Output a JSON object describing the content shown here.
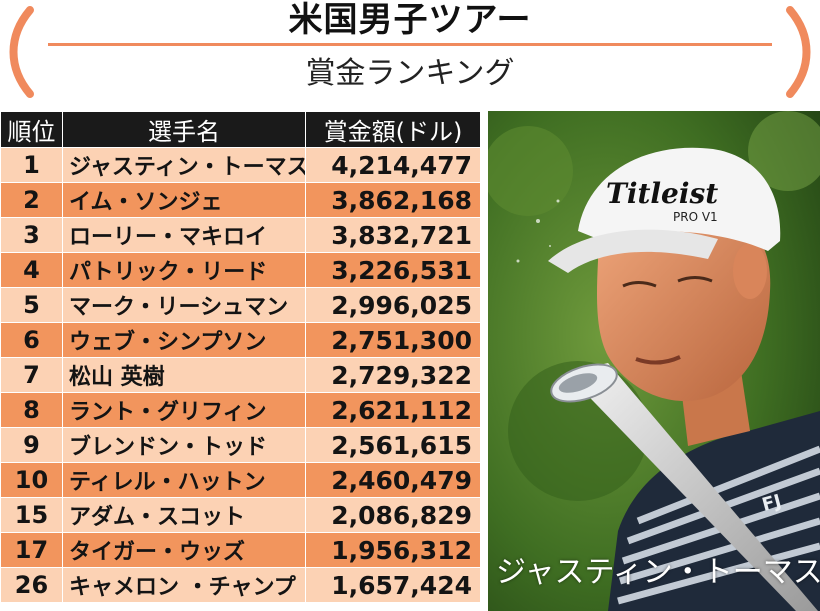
{
  "header": {
    "title": "米国男子ツアー",
    "subtitle": "賞金ランキング"
  },
  "table": {
    "headers": {
      "rank": "順位",
      "player": "選手名",
      "prize": "賞金額(ドル)"
    },
    "rows": [
      {
        "rank": "1",
        "player": "ジャスティン・トーマス",
        "prize": "4,214,477"
      },
      {
        "rank": "2",
        "player": "イム・ソンジェ",
        "prize": "3,862,168"
      },
      {
        "rank": "3",
        "player": "ローリー・マキロイ",
        "prize": "3,832,721"
      },
      {
        "rank": "4",
        "player": "パトリック・リード",
        "prize": "3,226,531"
      },
      {
        "rank": "5",
        "player": "マーク・リーシュマン",
        "prize": "2,996,025"
      },
      {
        "rank": "6",
        "player": "ウェブ・シンプソン",
        "prize": "2,751,300"
      },
      {
        "rank": "7",
        "player": "松山 英樹",
        "prize": "2,729,322"
      },
      {
        "rank": "8",
        "player": "ラント・グリフィン",
        "prize": "2,621,112"
      },
      {
        "rank": "9",
        "player": "ブレンドン・トッド",
        "prize": "2,561,615"
      },
      {
        "rank": "10",
        "player": "ティレル・ハットン",
        "prize": "2,460,479"
      },
      {
        "rank": "15",
        "player": "アダム・スコット",
        "prize": "2,086,829"
      },
      {
        "rank": "17",
        "player": "タイガー・ウッズ",
        "prize": "1,956,312"
      },
      {
        "rank": "26",
        "player": "キャメロン ・チャンプ",
        "prize": "1,657,424"
      }
    ]
  },
  "photo": {
    "caption": "ジャスティン・トーマス",
    "cap_brand": "Titleist",
    "cap_model": "PRO V1",
    "shirt_logo": "FJ"
  },
  "colors": {
    "accent": "#f08a5d",
    "row_light": "#fcd2b4",
    "row_dark": "#f2955d",
    "header_bg": "#1a1a1a"
  }
}
